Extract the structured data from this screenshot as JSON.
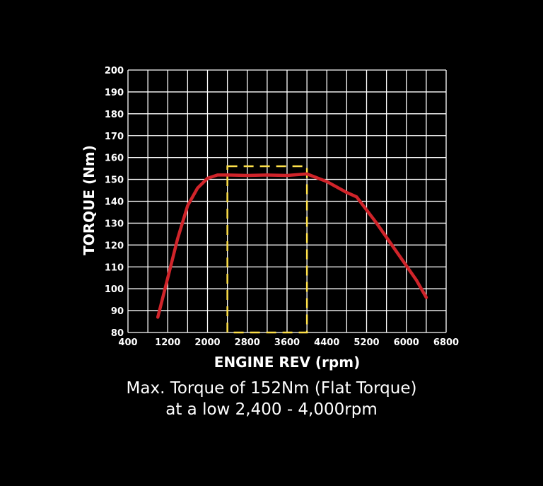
{
  "chart_data": {
    "type": "line",
    "xlabel": "ENGINE REV (rpm)",
    "ylabel": "TORQUE (Nm)",
    "xlim": [
      400,
      6800
    ],
    "ylim": [
      80,
      200
    ],
    "x_ticks": [
      400,
      1200,
      2000,
      2800,
      3600,
      4400,
      5200,
      6000,
      6800
    ],
    "y_ticks": [
      80,
      90,
      100,
      110,
      120,
      130,
      140,
      150,
      160,
      170,
      180,
      190,
      200
    ],
    "grid": true,
    "series": [
      {
        "color": "#d0242a",
        "x": [
          1000,
          1200,
          1400,
          1600,
          1800,
          2000,
          2200,
          2400,
          2800,
          3200,
          3600,
          4000,
          4400,
          4800,
          5000,
          5400,
          5800,
          6200,
          6400
        ],
        "y": [
          87,
          105,
          123,
          138,
          146,
          150.5,
          152,
          152,
          151.8,
          152,
          151.8,
          152.5,
          149,
          144,
          142,
          130,
          117,
          104,
          96
        ]
      }
    ],
    "highlight_box": {
      "x": [
        2400,
        4000
      ],
      "y": [
        80,
        156
      ],
      "color": "#ffe14a",
      "style": "dashed"
    },
    "annotation": [
      "Max. Torque of 152Nm (Flat Torque)",
      "at a low 2,400 - 4,000rpm"
    ],
    "colors": {
      "background": "#000000",
      "grid": "#ffffff",
      "text": "#ffffff"
    }
  }
}
